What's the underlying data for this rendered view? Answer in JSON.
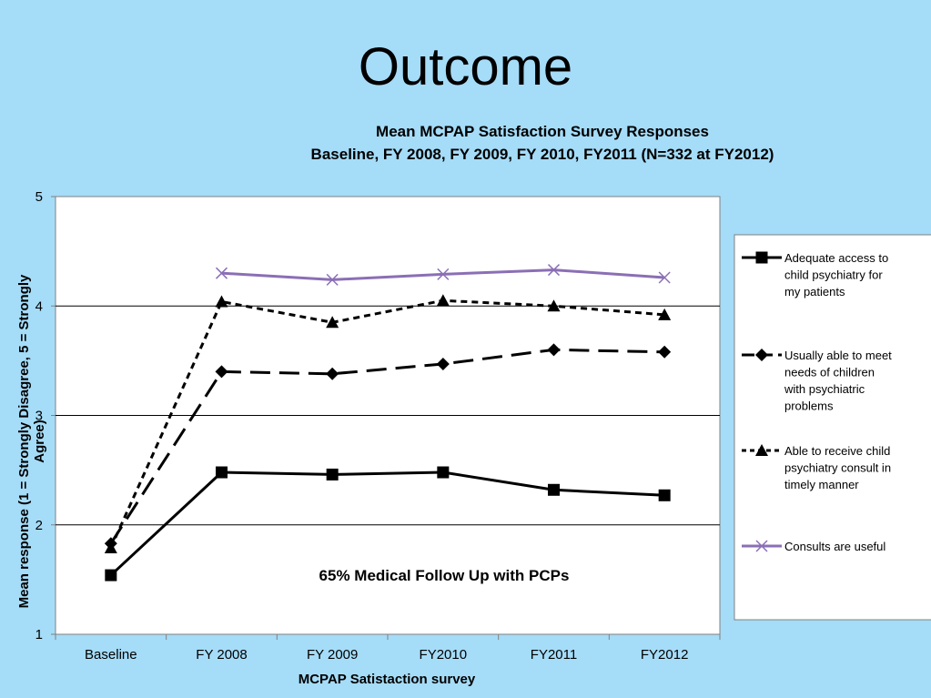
{
  "slide": {
    "title": "Outcome"
  },
  "chart_data": {
    "type": "line",
    "title": "Mean MCPAP Satisfaction Survey Responses",
    "subtitle": "Baseline, FY 2008, FY 2009, FY 2010, FY2011 (N=332 at FY2012)",
    "xlabel": "MCPAP Satistaction survey",
    "ylabel_line1": "Mean response  (1 = Strongly Disagree,  5 = Strongly",
    "ylabel_line2": "Agree)",
    "categories": [
      "Baseline",
      "FY 2008",
      "FY 2009",
      "FY2010",
      "FY2011",
      "FY2012"
    ],
    "ylim": [
      1,
      5
    ],
    "yticks": [
      "1",
      "2",
      "3",
      "4",
      "5"
    ],
    "grid": true,
    "legend_position": "right",
    "annotation": "65% Medical Follow Up with PCPs",
    "series": [
      {
        "name": "Adequate access to child psychiatry for my patients",
        "legend_lines": [
          "Adequate access to",
          "child psychiatry for",
          "my patients"
        ],
        "values": [
          1.54,
          2.48,
          2.46,
          2.48,
          2.32,
          2.27
        ],
        "color": "#000000",
        "dash": "solid",
        "marker": "square"
      },
      {
        "name": "Usually able to meet needs of children with psychiatric problems",
        "legend_lines": [
          "Usually able to meet",
          "needs of children",
          "with psychiatric",
          "problems"
        ],
        "values": [
          1.83,
          3.4,
          3.38,
          3.47,
          3.6,
          3.58
        ],
        "color": "#000000",
        "dash": "long-dash",
        "marker": "diamond"
      },
      {
        "name": "Able to receive child psychiatry consult in timely manner",
        "legend_lines": [
          "Able to receive child",
          "psychiatry consult in",
          "timely manner"
        ],
        "values": [
          1.79,
          4.04,
          3.85,
          4.05,
          4.0,
          3.92
        ],
        "color": "#000000",
        "dash": "short-dash",
        "marker": "triangle"
      },
      {
        "name": "Consults are useful",
        "legend_lines": [
          "Consults are useful"
        ],
        "values": [
          null,
          4.3,
          4.24,
          4.29,
          4.33,
          4.26
        ],
        "color": "#8b6fb5",
        "dash": "solid",
        "marker": "x"
      }
    ]
  }
}
